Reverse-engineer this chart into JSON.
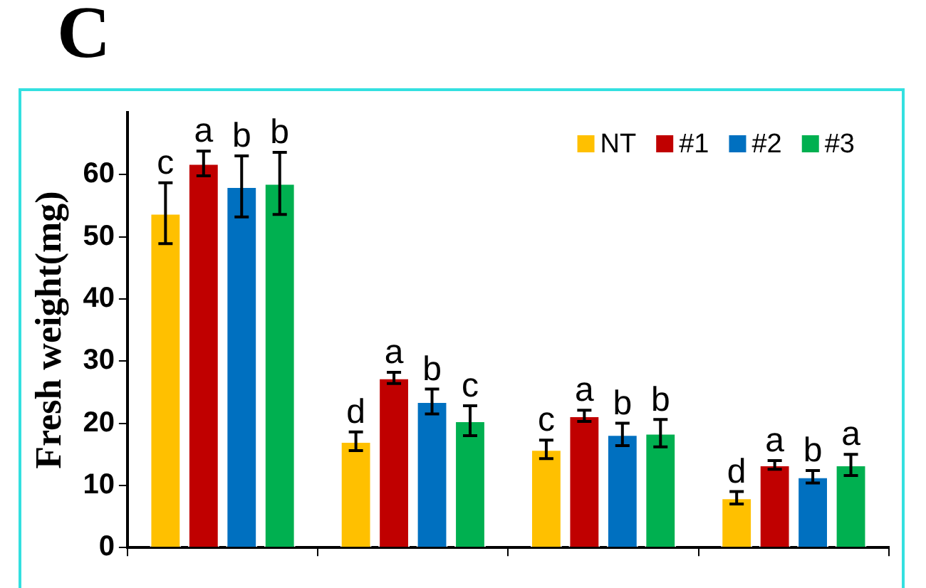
{
  "chart_data": {
    "type": "bar",
    "title": "C",
    "ylabel": "Fresh weight(mg)",
    "categories": [
      null,
      null,
      null,
      null
    ],
    "series": [
      {
        "name": "NT",
        "color": "#ffc000",
        "values": [
          53.8,
          17.1,
          15.8,
          8.0
        ],
        "errors": [
          4.9,
          1.5,
          1.5,
          1.0
        ]
      },
      {
        "name": "#1",
        "color": "#c00000",
        "values": [
          61.8,
          27.3,
          21.2,
          13.3
        ],
        "errors": [
          2.0,
          0.9,
          0.9,
          0.7
        ]
      },
      {
        "name": "#2",
        "color": "#0070c0",
        "values": [
          58.1,
          23.5,
          18.2,
          11.4
        ],
        "errors": [
          4.9,
          2.0,
          1.8,
          1.0
        ]
      },
      {
        "name": "#3",
        "color": "#00b050",
        "values": [
          58.6,
          20.4,
          18.4,
          13.3
        ],
        "errors": [
          5.0,
          2.4,
          2.2,
          1.7
        ]
      }
    ],
    "annotations": [
      "c",
      "a",
      "b",
      "b",
      "d",
      "a",
      "b",
      "c",
      "c",
      "a",
      "b",
      "b",
      "d",
      "a",
      "b",
      "a"
    ],
    "ylim": [
      0,
      70
    ],
    "yticks": [
      0,
      10,
      20,
      30,
      40,
      50,
      60
    ],
    "grid": false,
    "legend": "top right"
  }
}
